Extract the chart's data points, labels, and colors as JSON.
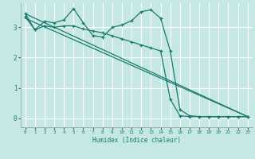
{
  "xlabel": "Humidex (Indice chaleur)",
  "bg_color": "#c5e8e5",
  "line_color": "#1a7a6e",
  "grid_color": "#ffffff",
  "xlim": [
    -0.5,
    23.5
  ],
  "ylim": [
    -0.3,
    3.8
  ],
  "yticks": [
    0,
    1,
    2,
    3
  ],
  "xticks": [
    0,
    1,
    2,
    3,
    4,
    5,
    6,
    7,
    8,
    9,
    10,
    11,
    12,
    13,
    14,
    15,
    16,
    17,
    18,
    19,
    20,
    21,
    22,
    23
  ],
  "series1_x": [
    0,
    1,
    2,
    3,
    4,
    5,
    6,
    7,
    8,
    9,
    10,
    11,
    12,
    13,
    14,
    15,
    16,
    17,
    18,
    19,
    20,
    21,
    22,
    23
  ],
  "series1_y": [
    3.45,
    2.92,
    3.2,
    3.15,
    3.25,
    3.62,
    3.15,
    2.73,
    2.68,
    3.0,
    3.08,
    3.22,
    3.52,
    3.58,
    3.3,
    2.22,
    0.28,
    0.08,
    0.05,
    0.05,
    0.05,
    0.05,
    0.05,
    0.05
  ],
  "series2_x": [
    0,
    1,
    2,
    3,
    4,
    5,
    6,
    7,
    8,
    9,
    10,
    11,
    12,
    13,
    14,
    15,
    16,
    17,
    18,
    19,
    20,
    21,
    22,
    23
  ],
  "series2_y": [
    3.35,
    2.92,
    3.05,
    3.0,
    3.05,
    3.05,
    2.95,
    2.88,
    2.82,
    2.72,
    2.62,
    2.52,
    2.42,
    2.32,
    2.22,
    0.62,
    0.08,
    0.05,
    0.05,
    0.05,
    0.05,
    0.05,
    0.05,
    0.05
  ],
  "series3_y_start": 3.45,
  "series3_y_end": 0.05,
  "series4_y_start": 3.3,
  "series4_y_end": 0.05
}
